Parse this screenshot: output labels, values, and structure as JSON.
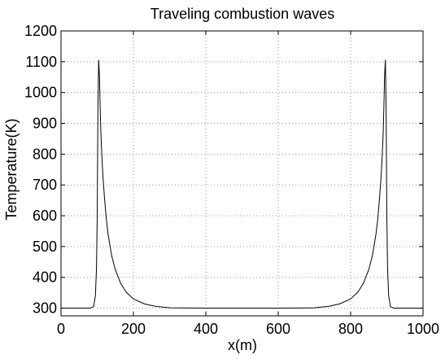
{
  "chart_data": {
    "type": "line",
    "title": "Traveling combustion waves",
    "xlabel": "x(m)",
    "ylabel": "Temperature(K)",
    "xlim": [
      0,
      1000
    ],
    "ylim": [
      275,
      1200
    ],
    "grid": true,
    "grid_style": "dotted",
    "x_ticks": [
      0,
      200,
      400,
      600,
      800,
      1000
    ],
    "y_ticks": [
      300,
      400,
      500,
      600,
      700,
      800,
      900,
      1000,
      1100,
      1200
    ],
    "series": [
      {
        "color": "#000000",
        "x": [
          0,
          80,
          90,
          95,
          98,
          100,
          102,
          104,
          106,
          108,
          110,
          113,
          116,
          120,
          125,
          130,
          140,
          150,
          165,
          180,
          200,
          230,
          260,
          300,
          400,
          500,
          600,
          700,
          740,
          770,
          800,
          820,
          835,
          850,
          860,
          870,
          875,
          880,
          884,
          887,
          890,
          892,
          894,
          896,
          898,
          900,
          902,
          905,
          910,
          920,
          1000
        ],
        "y": [
          300,
          300,
          305,
          340,
          430,
          600,
          950,
          1105,
          1060,
          960,
          870,
          790,
          725,
          660,
          590,
          540,
          470,
          425,
          380,
          352,
          330,
          314,
          306,
          301,
          300,
          300,
          300,
          301,
          306,
          314,
          330,
          352,
          380,
          425,
          470,
          540,
          590,
          660,
          725,
          790,
          870,
          960,
          1060,
          1105,
          950,
          600,
          430,
          340,
          305,
          300,
          300
        ]
      }
    ]
  }
}
